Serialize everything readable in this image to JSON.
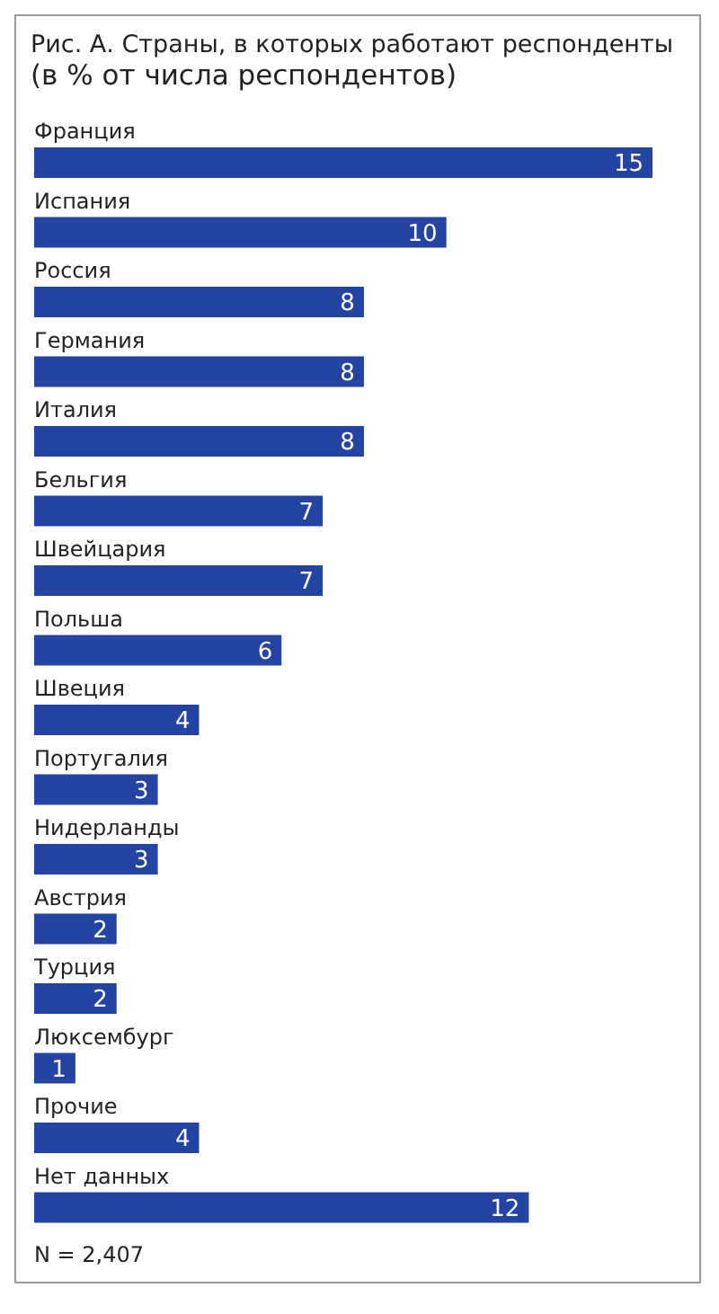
{
  "chart_data": {
    "type": "bar",
    "orientation": "horizontal",
    "title": "Рис. А.  Страны, в которых работают респонденты",
    "subtitle": "(в % от числа респондентов)",
    "categories": [
      "Франция",
      "Испания",
      "Россия",
      "Германия",
      "Италия",
      "Бельгия",
      "Швейцария",
      "Польша",
      "Швеция",
      "Португалия",
      "Нидерланды",
      "Австрия",
      "Турция",
      "Люксембург",
      "Прочие",
      "Нет данных"
    ],
    "values": [
      15,
      10,
      8,
      8,
      8,
      7,
      7,
      6,
      4,
      3,
      3,
      2,
      2,
      1,
      4,
      12
    ],
    "color": "#2444a4",
    "data_labels": true,
    "annotations": [
      "N = 2,407"
    ]
  }
}
